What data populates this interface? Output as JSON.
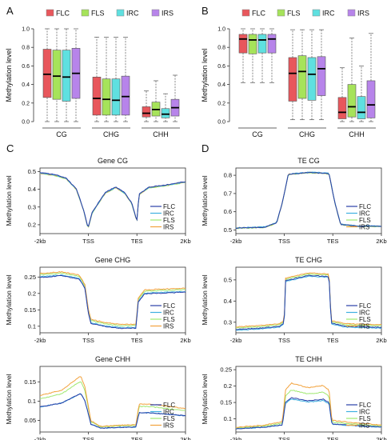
{
  "colors": {
    "FLC": "#e8575c",
    "FLS": "#a6e35a",
    "IRC": "#5fe0e0",
    "IRS": "#b784ea",
    "line_FLC": "#2a3fa8",
    "line_IRC": "#3fb0e0",
    "line_FLS": "#9fe870",
    "line_IRS": "#f2a23c"
  },
  "chart_data": [
    {
      "panel": "A",
      "type": "box",
      "series": [
        "FLC",
        "FLS",
        "IRC",
        "IRS"
      ],
      "categories": [
        "CG",
        "CHG",
        "CHH"
      ],
      "ylabel": "Methylation level",
      "ylim": [
        0,
        1.0
      ],
      "yticks": [
        "0.0",
        "0.2",
        "0.4",
        "0.6",
        "0.8",
        "1.0"
      ],
      "boxes": [
        [
          [
            0.0,
            0.26,
            0.51,
            0.78,
            1.0
          ],
          [
            0.0,
            0.24,
            0.49,
            0.77,
            1.0
          ],
          [
            0.0,
            0.22,
            0.48,
            0.77,
            1.0
          ],
          [
            0.0,
            0.25,
            0.52,
            0.79,
            1.0
          ]
        ],
        [
          [
            0.0,
            0.07,
            0.25,
            0.48,
            0.91
          ],
          [
            0.0,
            0.07,
            0.24,
            0.46,
            0.91
          ],
          [
            0.0,
            0.07,
            0.23,
            0.46,
            0.91
          ],
          [
            0.0,
            0.07,
            0.27,
            0.49,
            0.91
          ]
        ],
        [
          [
            0.0,
            0.05,
            0.09,
            0.16,
            0.33
          ],
          [
            0.0,
            0.06,
            0.13,
            0.21,
            0.44
          ],
          [
            0.0,
            0.04,
            0.08,
            0.14,
            0.3
          ],
          [
            0.0,
            0.06,
            0.15,
            0.24,
            0.5
          ]
        ]
      ]
    },
    {
      "panel": "B",
      "type": "box",
      "series": [
        "FLC",
        "FLS",
        "IRC",
        "IRS"
      ],
      "categories": [
        "CG",
        "CHG",
        "CHH"
      ],
      "ylabel": "Methylation level",
      "ylim": [
        0,
        1.0
      ],
      "yticks": [
        "0.0",
        "0.2",
        "0.4",
        "0.6",
        "0.8",
        "1.0"
      ],
      "boxes": [
        [
          [
            0.42,
            0.74,
            0.89,
            0.94,
            1.0
          ],
          [
            0.42,
            0.73,
            0.88,
            0.94,
            1.0
          ],
          [
            0.42,
            0.74,
            0.88,
            0.94,
            1.0
          ],
          [
            0.42,
            0.74,
            0.89,
            0.94,
            1.0
          ]
        ],
        [
          [
            0.02,
            0.22,
            0.52,
            0.69,
            0.99
          ],
          [
            0.02,
            0.25,
            0.54,
            0.71,
            0.99
          ],
          [
            0.02,
            0.23,
            0.51,
            0.69,
            0.99
          ],
          [
            0.02,
            0.28,
            0.57,
            0.7,
            0.99
          ]
        ],
        [
          [
            0.0,
            0.03,
            0.1,
            0.26,
            0.58
          ],
          [
            0.0,
            0.05,
            0.16,
            0.4,
            0.9
          ],
          [
            0.0,
            0.03,
            0.1,
            0.27,
            0.6
          ],
          [
            0.0,
            0.04,
            0.18,
            0.44,
            0.95
          ]
        ]
      ]
    },
    {
      "panel": "C",
      "type": "line",
      "title": "Gene CG",
      "ylabel": "Methylation level",
      "xticks": [
        "-2kb",
        "TSS",
        "TES",
        "2Kb"
      ],
      "ylim": [
        0.15,
        0.52
      ],
      "yticks": [
        0.2,
        0.3,
        0.4,
        0.5
      ],
      "legend": [
        "FLC",
        "IRC",
        "FLS",
        "IRS"
      ],
      "knots": [
        [
          0,
          0.49
        ],
        [
          0.1,
          0.48
        ],
        [
          0.18,
          0.46
        ],
        [
          0.25,
          0.4
        ],
        [
          0.3,
          0.28
        ],
        [
          0.33,
          0.18
        ],
        [
          0.36,
          0.27
        ],
        [
          0.45,
          0.38
        ],
        [
          0.52,
          0.41
        ],
        [
          0.58,
          0.38
        ],
        [
          0.63,
          0.32
        ],
        [
          0.666,
          0.22
        ],
        [
          0.68,
          0.37
        ],
        [
          0.75,
          0.41
        ],
        [
          0.85,
          0.42
        ],
        [
          1,
          0.44
        ]
      ],
      "offsets": {
        "FLC": 0.003,
        "IRC": 0.001,
        "FLS": -0.002,
        "IRS": 0.0
      }
    },
    {
      "panel": "C",
      "type": "line",
      "title": "Gene CHG",
      "ylabel": "Methylation level",
      "xticks": [
        "-2kb",
        "TSS",
        "TES",
        "2Kb"
      ],
      "ylim": [
        0.08,
        0.28
      ],
      "yticks": [
        0.1,
        0.15,
        0.2,
        0.25
      ],
      "legend": [
        "FLC",
        "IRC",
        "FLS",
        "IRS"
      ],
      "knots": [
        [
          0,
          0.255
        ],
        [
          0.15,
          0.26
        ],
        [
          0.27,
          0.25
        ],
        [
          0.31,
          0.22
        ],
        [
          0.33,
          0.15
        ],
        [
          0.35,
          0.115
        ],
        [
          0.45,
          0.105
        ],
        [
          0.55,
          0.1
        ],
        [
          0.66,
          0.1
        ],
        [
          0.675,
          0.18
        ],
        [
          0.72,
          0.205
        ],
        [
          1,
          0.21
        ]
      ],
      "offsets": {
        "FLC": -0.006,
        "IRC": -0.004,
        "FLS": 0.002,
        "IRS": 0.006
      }
    },
    {
      "panel": "C",
      "type": "line",
      "title": "Gene CHH",
      "ylabel": "Methylation level",
      "xticks": [
        "-2kb",
        "TSS",
        "TES",
        "2Kb"
      ],
      "ylim": [
        0.02,
        0.19
      ],
      "yticks": [
        0.05,
        0.1,
        0.15
      ],
      "legend": [
        "FLC",
        "IRC",
        "FLS",
        "IRS"
      ],
      "knots": [
        [
          0,
          0.085
        ],
        [
          0.15,
          0.095
        ],
        [
          0.28,
          0.12
        ],
        [
          0.31,
          0.1
        ],
        [
          0.35,
          0.04
        ],
        [
          0.42,
          0.03
        ],
        [
          0.55,
          0.032
        ],
        [
          0.66,
          0.033
        ],
        [
          0.68,
          0.07
        ],
        [
          0.75,
          0.07
        ],
        [
          1,
          0.062
        ]
      ],
      "scale": {
        "FLC": 1.0,
        "IRC": 1.0,
        "FLS": 1.32,
        "IRS": 1.45
      }
    },
    {
      "panel": "D",
      "type": "line",
      "title": "TE CG",
      "ylabel": "Methylation level",
      "xticks": [
        "-2kb",
        "TSS",
        "TES",
        "2Kb"
      ],
      "ylim": [
        0.48,
        0.84
      ],
      "yticks": [
        0.5,
        0.6,
        0.7,
        0.8
      ],
      "legend": [
        "FLC",
        "IRC",
        "FLS",
        "IRS"
      ],
      "knots": [
        [
          0,
          0.51
        ],
        [
          0.2,
          0.515
        ],
        [
          0.28,
          0.54
        ],
        [
          0.32,
          0.65
        ],
        [
          0.36,
          0.805
        ],
        [
          0.5,
          0.815
        ],
        [
          0.64,
          0.81
        ],
        [
          0.68,
          0.65
        ],
        [
          0.72,
          0.53
        ],
        [
          0.85,
          0.52
        ],
        [
          1,
          0.52
        ]
      ],
      "offsets": {
        "FLC": 0.0,
        "IRC": 0.002,
        "FLS": -0.002,
        "IRS": 0.001
      }
    },
    {
      "panel": "D",
      "type": "line",
      "title": "TE CHG",
      "ylabel": "Methylation level",
      "xticks": [
        "-2kb",
        "TSS",
        "TES",
        "2Kb"
      ],
      "ylim": [
        0.25,
        0.56
      ],
      "yticks": [
        0.3,
        0.4,
        0.5
      ],
      "legend": [
        "FLC",
        "IRC",
        "FLS",
        "IRS"
      ],
      "knots": [
        [
          0,
          0.27
        ],
        [
          0.15,
          0.275
        ],
        [
          0.3,
          0.285
        ],
        [
          0.332,
          0.3
        ],
        [
          0.34,
          0.5
        ],
        [
          0.5,
          0.525
        ],
        [
          0.64,
          0.52
        ],
        [
          0.655,
          0.3
        ],
        [
          0.75,
          0.285
        ],
        [
          1,
          0.28
        ]
      ],
      "offsets": {
        "FLC": -0.004,
        "IRC": -0.008,
        "FLS": 0.003,
        "IRS": 0.008
      }
    },
    {
      "panel": "D",
      "type": "line",
      "title": "TE CHH",
      "ylabel": "Methylation level",
      "xticks": [
        "-2kb",
        "TSS",
        "TES",
        "2Kb"
      ],
      "ylim": [
        0.06,
        0.26
      ],
      "yticks": [
        0.1,
        0.15,
        0.2,
        0.25
      ],
      "legend": [
        "FLC",
        "IRC",
        "FLS",
        "IRS"
      ],
      "knots": [
        [
          0,
          0.07
        ],
        [
          0.2,
          0.075
        ],
        [
          0.32,
          0.082
        ],
        [
          0.34,
          0.15
        ],
        [
          0.38,
          0.165
        ],
        [
          0.5,
          0.155
        ],
        [
          0.6,
          0.16
        ],
        [
          0.64,
          0.15
        ],
        [
          0.66,
          0.085
        ],
        [
          0.8,
          0.08
        ],
        [
          1,
          0.075
        ]
      ],
      "scale": {
        "FLC": 1.0,
        "IRC": 0.96,
        "FLS": 1.22,
        "IRS": 1.42
      }
    }
  ],
  "panel_letters": [
    "A",
    "B",
    "C",
    "D"
  ]
}
